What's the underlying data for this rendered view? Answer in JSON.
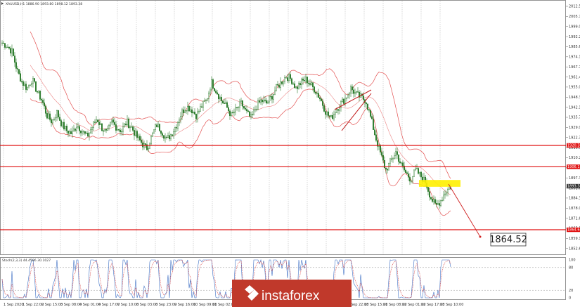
{
  "chart_header": {
    "symbol_line": "XAUUSD,H1 1886.90 1893.80 1898.12 1893.38"
  },
  "indicator_label": "Stoch(2,3,3) 44.4586 30.1027",
  "target_label": "1864.52",
  "brand": {
    "logo_text": "instaforex",
    "logo_color": "#c0392b"
  },
  "colors": {
    "candle_up": "#2a7a2a",
    "candle_down": "#2a7a2a",
    "band": "#e35050",
    "level_line": "#e01010",
    "highlight": "#ffef00",
    "stoch_main": "#3d6fc4",
    "stoch_signal": "#d84a4a",
    "grid": "#b0b0b0"
  },
  "y_axis": {
    "ticks": [
      "2012.55",
      "2005.78",
      "1999.00",
      "1992.25",
      "1985.60",
      "1974.15",
      "1967.70",
      "1961.40",
      "1955.00",
      "1948.35",
      "1942.15",
      "1935.76",
      "1929.05",
      "1922.30",
      "1916.55",
      "1910.25",
      "1903.60",
      "1897.30",
      "1891.00",
      "1884.30",
      "1878.00",
      "1871.60",
      "1865.50",
      "1859.10",
      "1852.60"
    ],
    "level_tags": [
      {
        "label": "1920.30",
        "price": 1920.3
      },
      {
        "label": "1906.17",
        "price": 1906.17
      },
      {
        "label": "1893.38",
        "price": 1893.38
      },
      {
        "label": "1864.64",
        "price": 1864.64
      }
    ]
  },
  "x_axis": {
    "ticks": [
      "1 Sep 2020",
      "1 Sep 22:00",
      "2 Sep 15:00",
      "3 Sep 08:00",
      "4 Sep 01:00",
      "4 Sep 17:00",
      "7 Sep 10:00",
      "8 Sep 03:00",
      "8 Sep 23:00",
      "9 Sep 16:00",
      "10 Sep 09:00",
      "11 Sep 02:00",
      "11 Sep 18:00",
      "14 Sep 11:00",
      "15 Sep 04:00",
      "15 Sep 20:00",
      "16 Sep 13:00",
      "17 Sep 06:00",
      "17 Sep 22:00",
      "18 Sep 15:00",
      "21 Sep 08:00",
      "22 Sep 01:00",
      "22 Sep 17:00",
      "23 Sep 10:00"
    ]
  },
  "stoch_axis": {
    "ticks": [
      "100",
      "80",
      "20",
      "0"
    ]
  },
  "chart_data": {
    "type": "candlestick",
    "title": "",
    "xlabel": "",
    "ylabel": "",
    "ylim": [
      1852.6,
      2012.55
    ],
    "horizontal_levels": [
      1920.3,
      1906.17,
      1864.64
    ],
    "target_level": 1864.52,
    "highlight_zone": [
      1893.0,
      1897.5
    ],
    "price_path": [
      1988,
      1986,
      1982,
      1970,
      1962,
      1958,
      1964,
      1956,
      1950,
      1940,
      1936,
      1942,
      1934,
      1930,
      1928,
      1934,
      1930,
      1926,
      1932,
      1938,
      1932,
      1928,
      1936,
      1932,
      1930,
      1936,
      1932,
      1926,
      1922,
      1918,
      1926,
      1934,
      1930,
      1924,
      1928,
      1934,
      1942,
      1946,
      1944,
      1940,
      1946,
      1950,
      1962,
      1956,
      1950,
      1946,
      1940,
      1944,
      1948,
      1942,
      1938,
      1946,
      1950,
      1948,
      1952,
      1958,
      1962,
      1966,
      1964,
      1958,
      1962,
      1964,
      1960,
      1956,
      1950,
      1942,
      1938,
      1944,
      1948,
      1952,
      1958,
      1954,
      1952,
      1950,
      1938,
      1925,
      1914,
      1904,
      1910,
      1916,
      1908,
      1902,
      1898,
      1904,
      1900,
      1896,
      1886,
      1880,
      1884,
      1890,
      1893
    ]
  }
}
